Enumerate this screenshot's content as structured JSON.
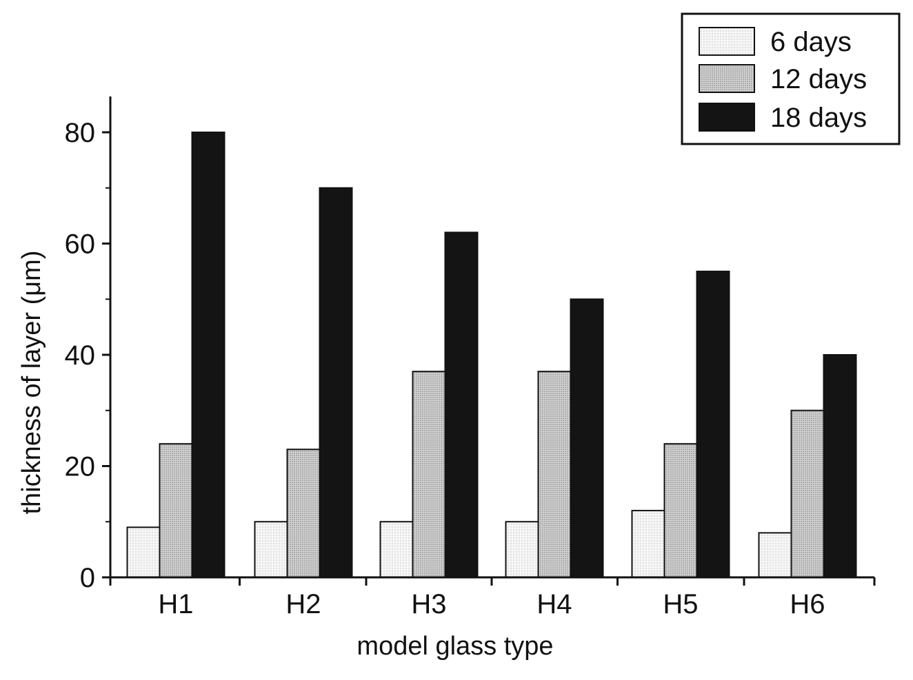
{
  "chart_data": {
    "type": "bar",
    "xlabel": "model glass type",
    "ylabel": "thickness of layer (μm)",
    "categories": [
      "H1",
      "H2",
      "H3",
      "H4",
      "H5",
      "H6"
    ],
    "series": [
      {
        "name": "6 days",
        "values": [
          9,
          10,
          10,
          10,
          12,
          8
        ],
        "color": "#efefef"
      },
      {
        "name": "12 days",
        "values": [
          24,
          23,
          37,
          37,
          24,
          30
        ],
        "color": "#c8c8c8"
      },
      {
        "name": "18 days",
        "values": [
          80,
          70,
          62,
          50,
          55,
          40
        ],
        "color": "#141414"
      }
    ],
    "ylim": [
      0,
      85
    ],
    "yticks": [
      0,
      20,
      40,
      60,
      80
    ],
    "grid": false,
    "legend_position": "top-right"
  }
}
